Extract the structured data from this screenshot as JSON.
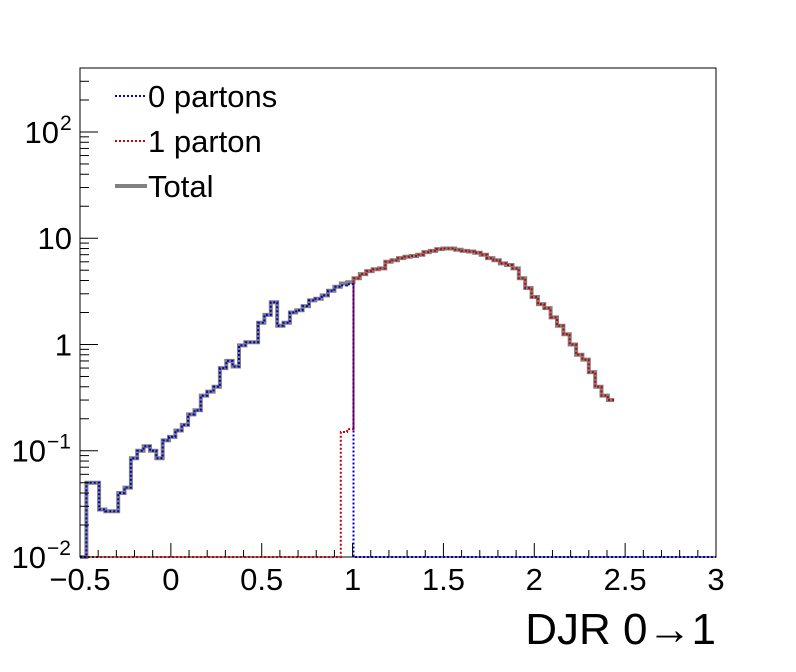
{
  "chart_data": {
    "type": "line",
    "title": "",
    "xlabel": "DJR 0→1",
    "ylabel": "",
    "x_scale": "linear",
    "y_scale": "log",
    "xlim": [
      -0.5,
      3.0
    ],
    "ylim": [
      0.01,
      400
    ],
    "x_ticks": [
      {
        "v": -0.5,
        "label": "−0.5"
      },
      {
        "v": 0,
        "label": "0"
      },
      {
        "v": 0.5,
        "label": "0.5"
      },
      {
        "v": 1,
        "label": "1"
      },
      {
        "v": 1.5,
        "label": "1.5"
      },
      {
        "v": 2,
        "label": "2"
      },
      {
        "v": 2.5,
        "label": "2.5"
      },
      {
        "v": 3,
        "label": "3"
      }
    ],
    "y_ticks": [
      {
        "v": 0.01,
        "base": "10",
        "exp": "−2"
      },
      {
        "v": 0.1,
        "base": "10",
        "exp": "−1"
      },
      {
        "v": 1,
        "base": "1",
        "exp": ""
      },
      {
        "v": 10,
        "base": "10",
        "exp": ""
      },
      {
        "v": 100,
        "base": "10",
        "exp": "2"
      }
    ],
    "grid": false,
    "legend_position": "top-left",
    "bin_width": 0.035,
    "bin_start": -0.5,
    "series": [
      {
        "name": "0 partons",
        "color": "#0000cc",
        "style": "dotted",
        "values": [
          0.01,
          0.05,
          0.05,
          0.028,
          0.027,
          0.027,
          0.04,
          0.045,
          0.085,
          0.1,
          0.11,
          0.1,
          0.085,
          0.125,
          0.135,
          0.155,
          0.175,
          0.22,
          0.24,
          0.33,
          0.36,
          0.4,
          0.6,
          0.7,
          0.62,
          0.98,
          1.05,
          1.05,
          1.6,
          1.9,
          2.5,
          1.5,
          1.6,
          2.0,
          2.1,
          2.3,
          2.6,
          2.7,
          2.9,
          3.2,
          3.5,
          3.6,
          3.7,
          0.01,
          0.01,
          0.01,
          0.01,
          0.01,
          0.01,
          0.01,
          0.01,
          0.01,
          0.01,
          0.01,
          0.01,
          0.01,
          0.01,
          0.01,
          0.01,
          0.01,
          0.01,
          0.01,
          0.01,
          0.01,
          0.01,
          0.01,
          0.01,
          0.01,
          0.01,
          0.01,
          0.01,
          0.01,
          0.01,
          0.01,
          0.01,
          0.01,
          0.01,
          0.01,
          0.01,
          0.01,
          0.01,
          0.01,
          0.01,
          0.01,
          0.01,
          0.01,
          0.01,
          0.01,
          0.01,
          0.01,
          0.01,
          0.01,
          0.01,
          0.01,
          0.01,
          0.01,
          0.01,
          0.01,
          0.01,
          0.01
        ]
      },
      {
        "name": "1 parton",
        "color": "#cc0000",
        "style": "dotted",
        "values": [
          0.01,
          0.01,
          0.01,
          0.01,
          0.01,
          0.01,
          0.01,
          0.01,
          0.01,
          0.01,
          0.01,
          0.01,
          0.01,
          0.01,
          0.01,
          0.01,
          0.01,
          0.01,
          0.01,
          0.01,
          0.01,
          0.01,
          0.01,
          0.01,
          0.01,
          0.01,
          0.01,
          0.01,
          0.01,
          0.01,
          0.01,
          0.01,
          0.01,
          0.01,
          0.01,
          0.01,
          0.01,
          0.01,
          0.01,
          0.01,
          0.01,
          0.15,
          0.16,
          4.2,
          4.6,
          4.9,
          5.1,
          5.2,
          6.0,
          6.2,
          6.5,
          6.7,
          6.8,
          7.0,
          7.4,
          7.6,
          7.9,
          8.0,
          8.0,
          7.8,
          7.6,
          7.5,
          7.3,
          7.0,
          6.5,
          6.2,
          5.8,
          5.6,
          5.2,
          4.2,
          3.4,
          2.8,
          2.4,
          2.2,
          1.8,
          1.5,
          1.25,
          1.0,
          0.8,
          0.72,
          0.55,
          0.4,
          0.33,
          0.3
        ]
      },
      {
        "name": "Total",
        "color": "#808080",
        "style": "solid",
        "values": [
          0.01,
          0.05,
          0.05,
          0.028,
          0.027,
          0.027,
          0.04,
          0.045,
          0.085,
          0.1,
          0.11,
          0.1,
          0.085,
          0.125,
          0.135,
          0.155,
          0.175,
          0.22,
          0.24,
          0.33,
          0.36,
          0.4,
          0.6,
          0.7,
          0.62,
          0.98,
          1.05,
          1.05,
          1.6,
          1.9,
          2.5,
          1.5,
          1.6,
          2.0,
          2.1,
          2.3,
          2.6,
          2.7,
          2.9,
          3.2,
          3.5,
          3.75,
          3.86,
          4.2,
          4.6,
          4.9,
          5.1,
          5.2,
          6.0,
          6.2,
          6.5,
          6.7,
          6.8,
          7.0,
          7.4,
          7.6,
          7.9,
          8.0,
          8.0,
          7.8,
          7.6,
          7.5,
          7.3,
          7.0,
          6.5,
          6.2,
          5.8,
          5.6,
          5.2,
          4.2,
          3.4,
          2.8,
          2.4,
          2.2,
          1.8,
          1.5,
          1.25,
          1.0,
          0.8,
          0.72,
          0.55,
          0.4,
          0.33,
          0.3
        ]
      }
    ]
  }
}
